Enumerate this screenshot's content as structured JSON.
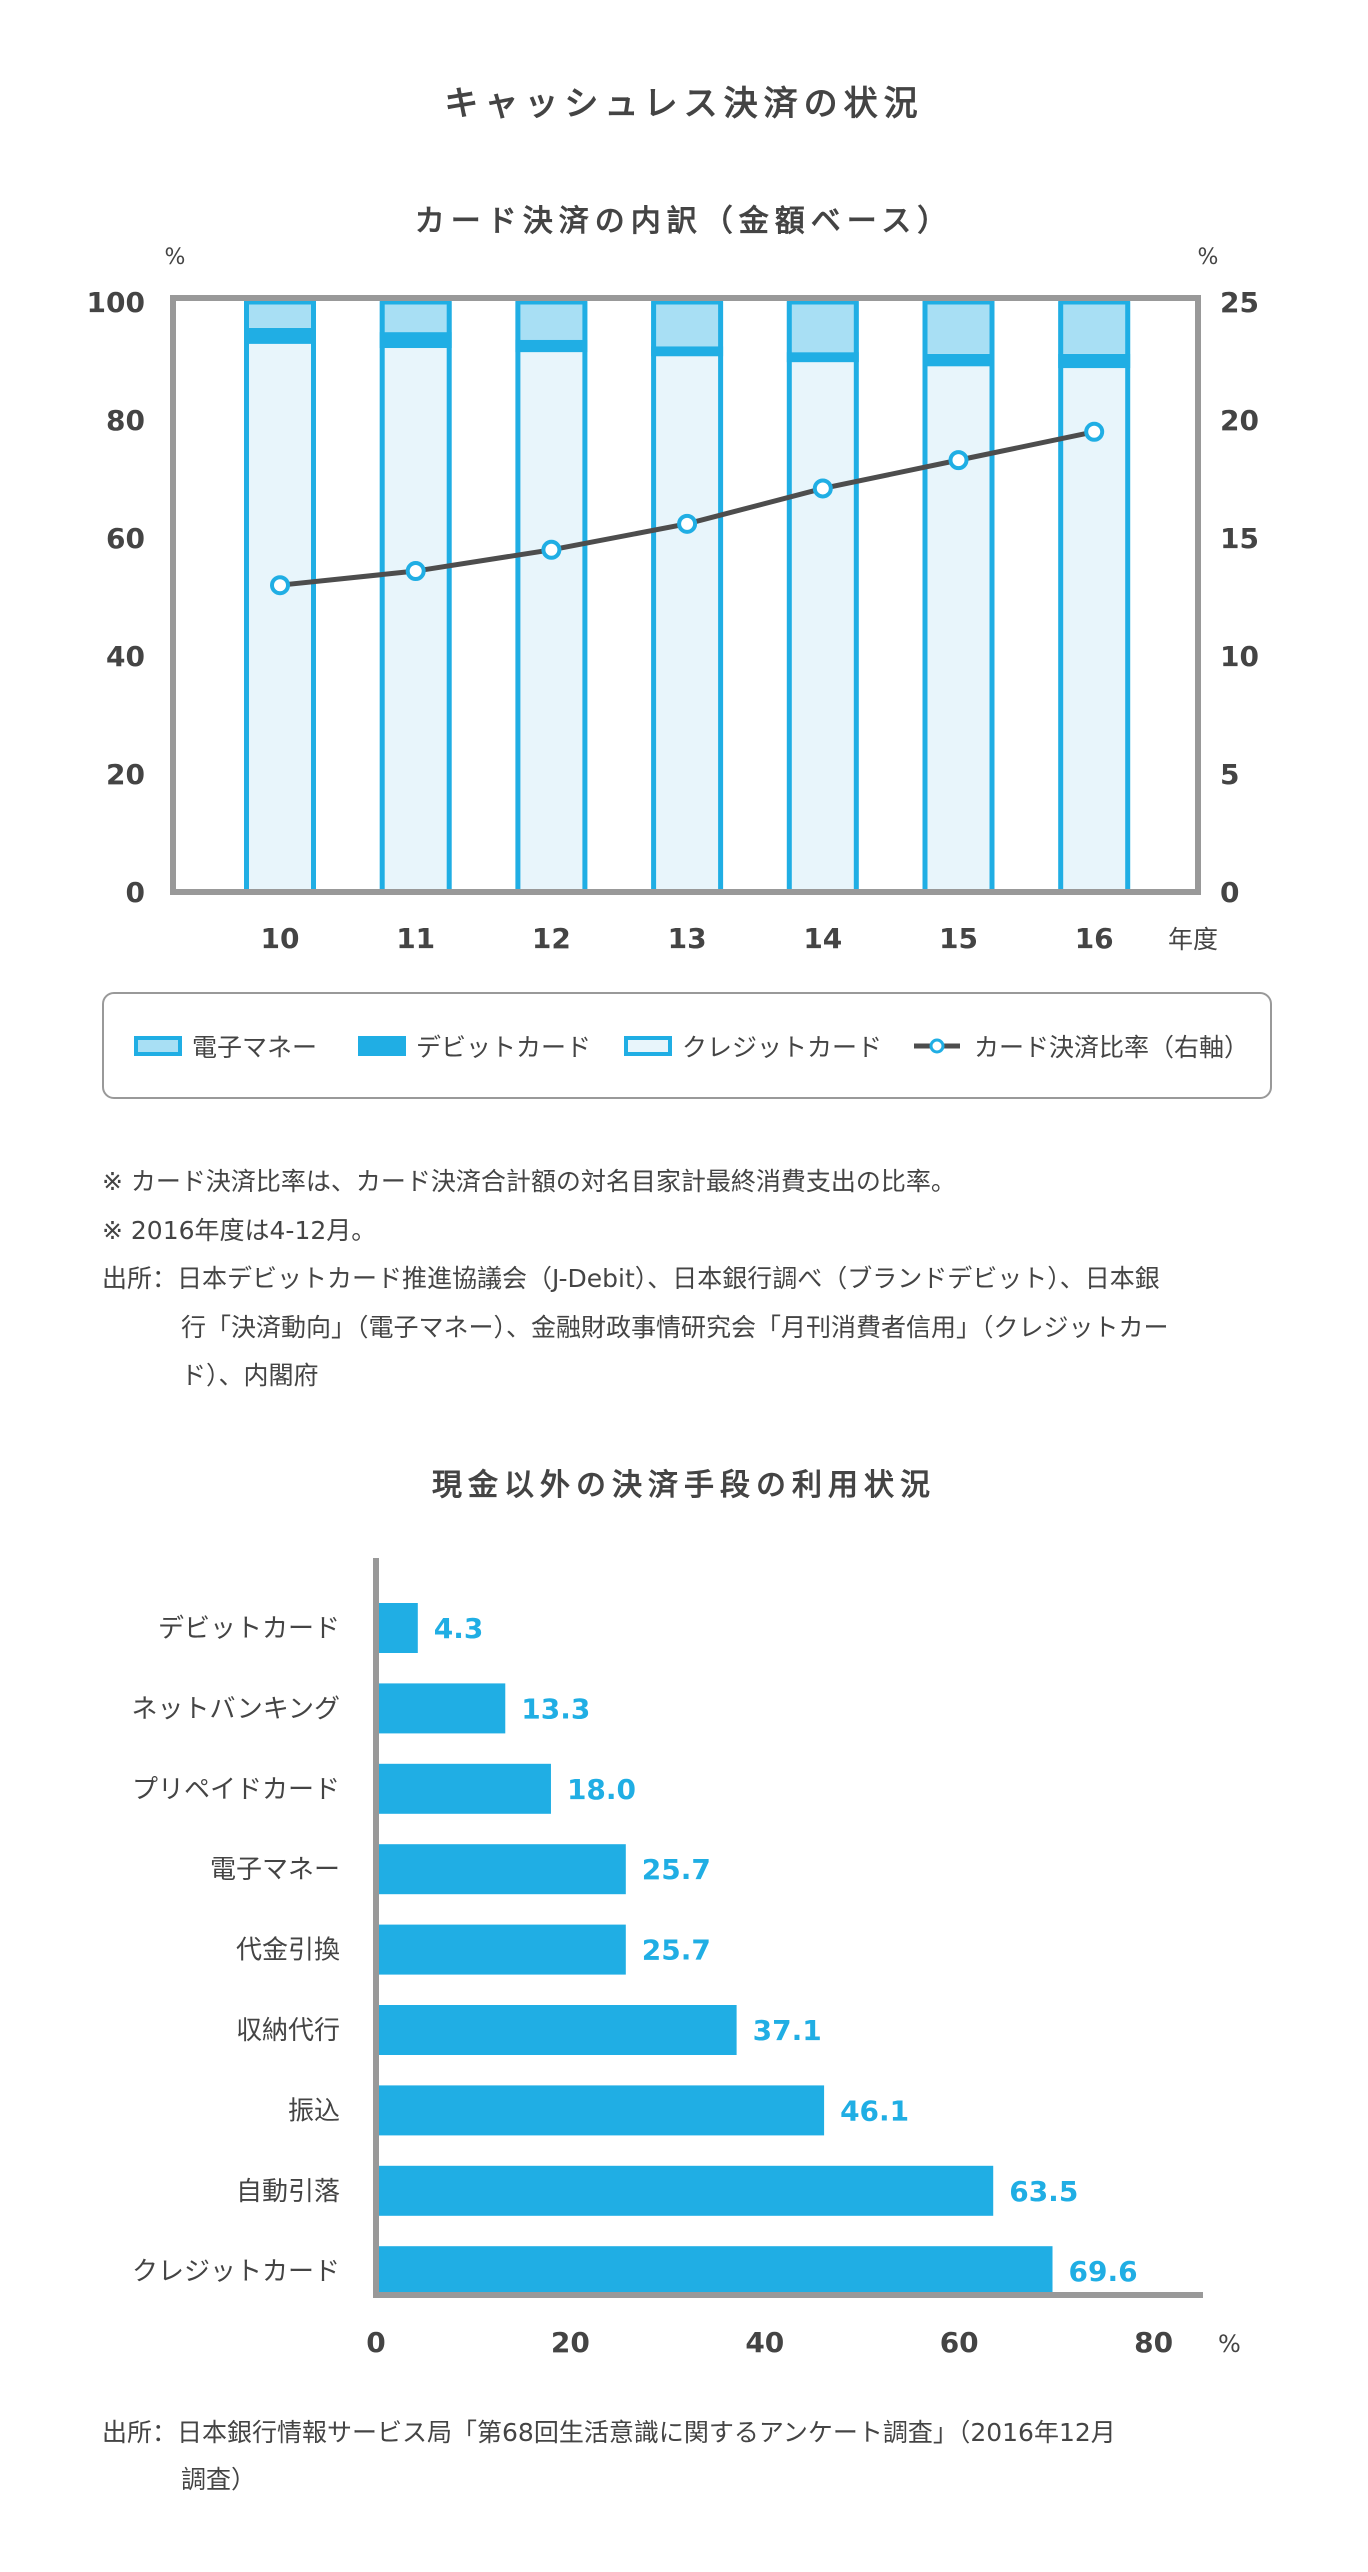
{
  "page_title": "キャッシュレス決済の状況",
  "colors": {
    "blue": "#20aee4",
    "light_blue": "#a8dff4",
    "pale_blue": "#e8f5fb",
    "line": "#4d4d4d",
    "frame": "#999999",
    "text": "#444444"
  },
  "chart_data": [
    {
      "type": "bar",
      "stacked": true,
      "title": "カード決済の内訳（金額ベース）",
      "y_unit_left": "%",
      "y_unit_right": "%",
      "xlabel": "年度",
      "categories": [
        "10",
        "11",
        "12",
        "13",
        "14",
        "15",
        "16"
      ],
      "ylim": [
        0,
        100
      ],
      "yticks": [
        "0",
        "20",
        "40",
        "60",
        "80",
        "100"
      ],
      "y2lim": [
        0,
        25
      ],
      "y2ticks": [
        "0",
        "5",
        "10",
        "15",
        "20",
        "25"
      ],
      "series": [
        {
          "name": "クレジットカード",
          "kind": "bar",
          "values": [
            92.9,
            92.2,
            91.5,
            90.8,
            89.8,
            89.1,
            88.8
          ]
        },
        {
          "name": "デビットカード",
          "kind": "bar",
          "values": [
            2.7,
            2.7,
            2.1,
            1.7,
            1.7,
            2.1,
            2.4
          ]
        },
        {
          "name": "電子マネー",
          "kind": "bar",
          "values": [
            4.4,
            5.1,
            6.4,
            7.5,
            8.5,
            8.8,
            8.8
          ]
        },
        {
          "name": "カード決済比率（右軸）",
          "kind": "line",
          "axis": "right",
          "values": [
            13.0,
            13.6,
            14.5,
            15.6,
            17.1,
            18.3,
            19.5
          ]
        }
      ],
      "legend": {
        "placement": "bottom",
        "items": [
          "電子マネー",
          "デビットカード",
          "クレジットカード",
          "カード決済比率（右軸）"
        ]
      },
      "grid": false
    },
    {
      "type": "bar",
      "orientation": "horizontal",
      "title": "現金以外の決済手段の利用状況",
      "categories": [
        "デビットカード",
        "ネットバンキング",
        "プリペイドカード",
        "電子マネー",
        "代金引換",
        "収納代行",
        "振込",
        "自動引落",
        "クレジットカード"
      ],
      "values": [
        4.3,
        13.3,
        18.0,
        25.7,
        25.7,
        37.1,
        46.1,
        63.5,
        69.6
      ],
      "labels": [
        "4.3",
        "13.3",
        "18.0",
        "25.7",
        "25.7",
        "37.1",
        "46.1",
        "63.5",
        "69.6"
      ],
      "xlim": [
        0,
        80
      ],
      "xticks": [
        "0",
        "20",
        "40",
        "60",
        "80"
      ],
      "x_unit": "%",
      "grid": false
    }
  ],
  "notes": [
    "※ カード決済比率は、カード決済合計額の対名目家計最終消費支出の比率。",
    "※ 2016年度は4-12月。",
    "出所：日本デビットカード推進協議会（J-Debit）、日本銀行調べ（ブランドデビット）、日本銀",
    "行「決済動向」（電子マネー）、金融財政事情研究会「月刊消費者信用」（クレジットカー",
    "ド）、内閣府"
  ],
  "source2": [
    "出所：日本銀行情報サービス局「第68回生活意識に関するアンケート調査」（2016年12月",
    "調査）"
  ]
}
